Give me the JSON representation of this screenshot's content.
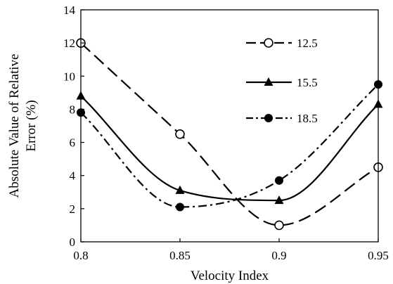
{
  "chart_data": {
    "type": "scatter",
    "title": "",
    "xlabel": "Velocity Index",
    "ylabel_lines": [
      "Absolute Value of Relative",
      "Error (%)"
    ],
    "xlim": [
      0.8,
      0.95
    ],
    "ylim": [
      0,
      14
    ],
    "xticks": [
      0.8,
      0.85,
      0.9,
      0.95
    ],
    "xtick_labels": [
      "0.8",
      "0.85",
      "0.9",
      "0.95"
    ],
    "yticks": [
      0,
      2,
      4,
      6,
      8,
      10,
      12,
      14
    ],
    "ytick_labels": [
      "0",
      "2",
      "4",
      "6",
      "8",
      "10",
      "12",
      "14"
    ],
    "grid": false,
    "legend_position": "top-right",
    "series": [
      {
        "name": "12.5",
        "marker": "open-circle",
        "line": "dashed",
        "x": [
          0.8,
          0.85,
          0.9,
          0.95
        ],
        "y": [
          12.0,
          6.5,
          1.0,
          4.5
        ]
      },
      {
        "name": "15.5",
        "marker": "filled-triangle",
        "line": "solid",
        "x": [
          0.8,
          0.85,
          0.9,
          0.95
        ],
        "y": [
          8.8,
          3.1,
          2.5,
          8.3
        ]
      },
      {
        "name": "18.5",
        "marker": "filled-circle",
        "line": "dash-dot",
        "x": [
          0.8,
          0.85,
          0.9,
          0.95
        ],
        "y": [
          7.8,
          2.1,
          3.7,
          9.5
        ]
      }
    ]
  }
}
